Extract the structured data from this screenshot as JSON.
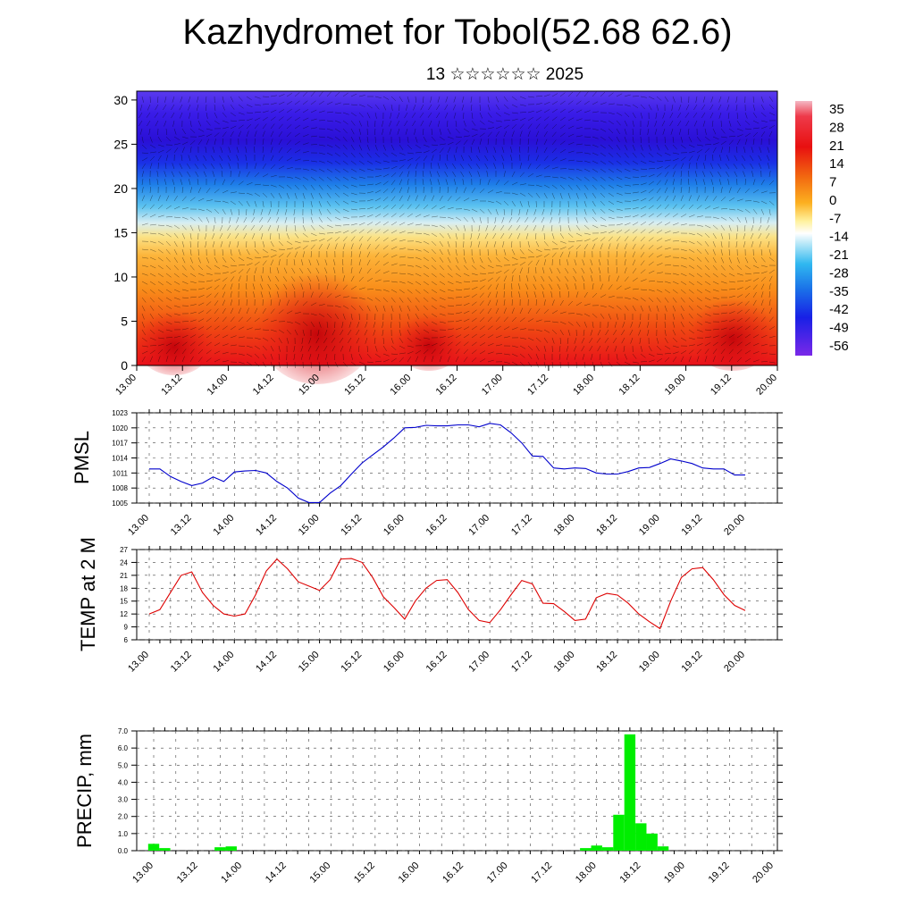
{
  "header": {
    "title": "Kazhydromet for Tobol(52.68 62.6)",
    "subtitle": "13 ☆☆☆☆☆☆ 2025"
  },
  "time_labels": [
    "13.00",
    "13.12",
    "14.00",
    "14.12",
    "15.00",
    "15.12",
    "16.00",
    "16.12",
    "17.00",
    "17.12",
    "18.00",
    "18.12",
    "19.00",
    "19.12",
    "20.00"
  ],
  "colors": {
    "pmsl_line": "#0000cc",
    "temp_line": "#dd0000",
    "precip_bar": "#00ee00"
  },
  "chart_data": [
    {
      "type": "heatmap",
      "y_ticks": [
        0,
        5,
        10,
        15,
        20,
        25,
        30
      ],
      "ylim": [
        0,
        31
      ],
      "colorbar_labels": [
        "35",
        "28",
        "21",
        "14",
        "7",
        "0",
        "-7",
        "-14",
        "-21",
        "-28",
        "-35",
        "-42",
        "-49",
        "-56"
      ],
      "colorbar_range": [
        -60,
        38
      ],
      "overlay": "wind barbs",
      "description_levels": "temperature by height over time; warm near surface, cold aloft"
    },
    {
      "type": "line",
      "ylabel": "PMSL",
      "ylim": [
        1005,
        1023
      ],
      "y_ticks": [
        1005,
        1008,
        1011,
        1014,
        1017,
        1020,
        1023
      ],
      "values": [
        1011.8,
        1011.8,
        1010.3,
        1009.3,
        1008.5,
        1009.0,
        1010.2,
        1009.3,
        1011.2,
        1011.4,
        1011.5,
        1011.0,
        1009.3,
        1008.0,
        1006.0,
        1005.1,
        1005.1,
        1007.0,
        1008.5,
        1010.8,
        1013.0,
        1014.6,
        1016.2,
        1018.0,
        1020.0,
        1020.1,
        1020.5,
        1020.4,
        1020.4,
        1020.6,
        1020.6,
        1020.2,
        1020.9,
        1020.6,
        1019.0,
        1017.0,
        1014.4,
        1014.3,
        1012.0,
        1011.8,
        1012.0,
        1011.9,
        1011.0,
        1010.8,
        1010.8,
        1011.3,
        1012.0,
        1012.1,
        1012.9,
        1013.8,
        1013.4,
        1012.9,
        1012.0,
        1011.8,
        1011.8,
        1010.6,
        1010.6
      ]
    },
    {
      "type": "line",
      "ylabel": "TEMP at 2 M",
      "ylim": [
        6,
        27
      ],
      "y_ticks": [
        6,
        9,
        12,
        15,
        18,
        21,
        24,
        27
      ],
      "values": [
        12.0,
        13.0,
        17.0,
        21.0,
        21.8,
        17.0,
        14.0,
        12.0,
        11.5,
        12.0,
        16.5,
        22.0,
        24.8,
        22.5,
        19.5,
        18.5,
        17.5,
        20.0,
        24.8,
        24.9,
        24.0,
        20.5,
        16.0,
        13.5,
        10.8,
        15.0,
        18.0,
        19.8,
        20.0,
        17.0,
        13.0,
        10.5,
        10.0,
        13.0,
        16.5,
        19.8,
        19.0,
        14.5,
        14.4,
        12.6,
        10.5,
        10.8,
        15.8,
        16.8,
        16.4,
        14.5,
        12.0,
        10.2,
        8.6,
        15.0,
        20.5,
        22.5,
        22.8,
        20.0,
        16.5,
        14.0,
        12.8
      ]
    },
    {
      "type": "bar",
      "ylabel": "PRECIP, mm",
      "ylim": [
        0,
        7
      ],
      "y_ticks": [
        "0.0",
        "1.0",
        "2.0",
        "3.0",
        "4.0",
        "5.0",
        "6.0",
        "7.0"
      ],
      "values": [
        0.4,
        0.15,
        0,
        0,
        0,
        0,
        0.2,
        0.25,
        0,
        0,
        0,
        0,
        0,
        0,
        0,
        0,
        0,
        0,
        0,
        0,
        0,
        0,
        0,
        0,
        0,
        0,
        0,
        0,
        0,
        0,
        0,
        0,
        0,
        0,
        0,
        0,
        0,
        0,
        0,
        0.15,
        0.3,
        0.2,
        2.1,
        6.8,
        1.6,
        1.0,
        0.25,
        0,
        0,
        0,
        0,
        0,
        0,
        0,
        0,
        0,
        0
      ]
    }
  ]
}
